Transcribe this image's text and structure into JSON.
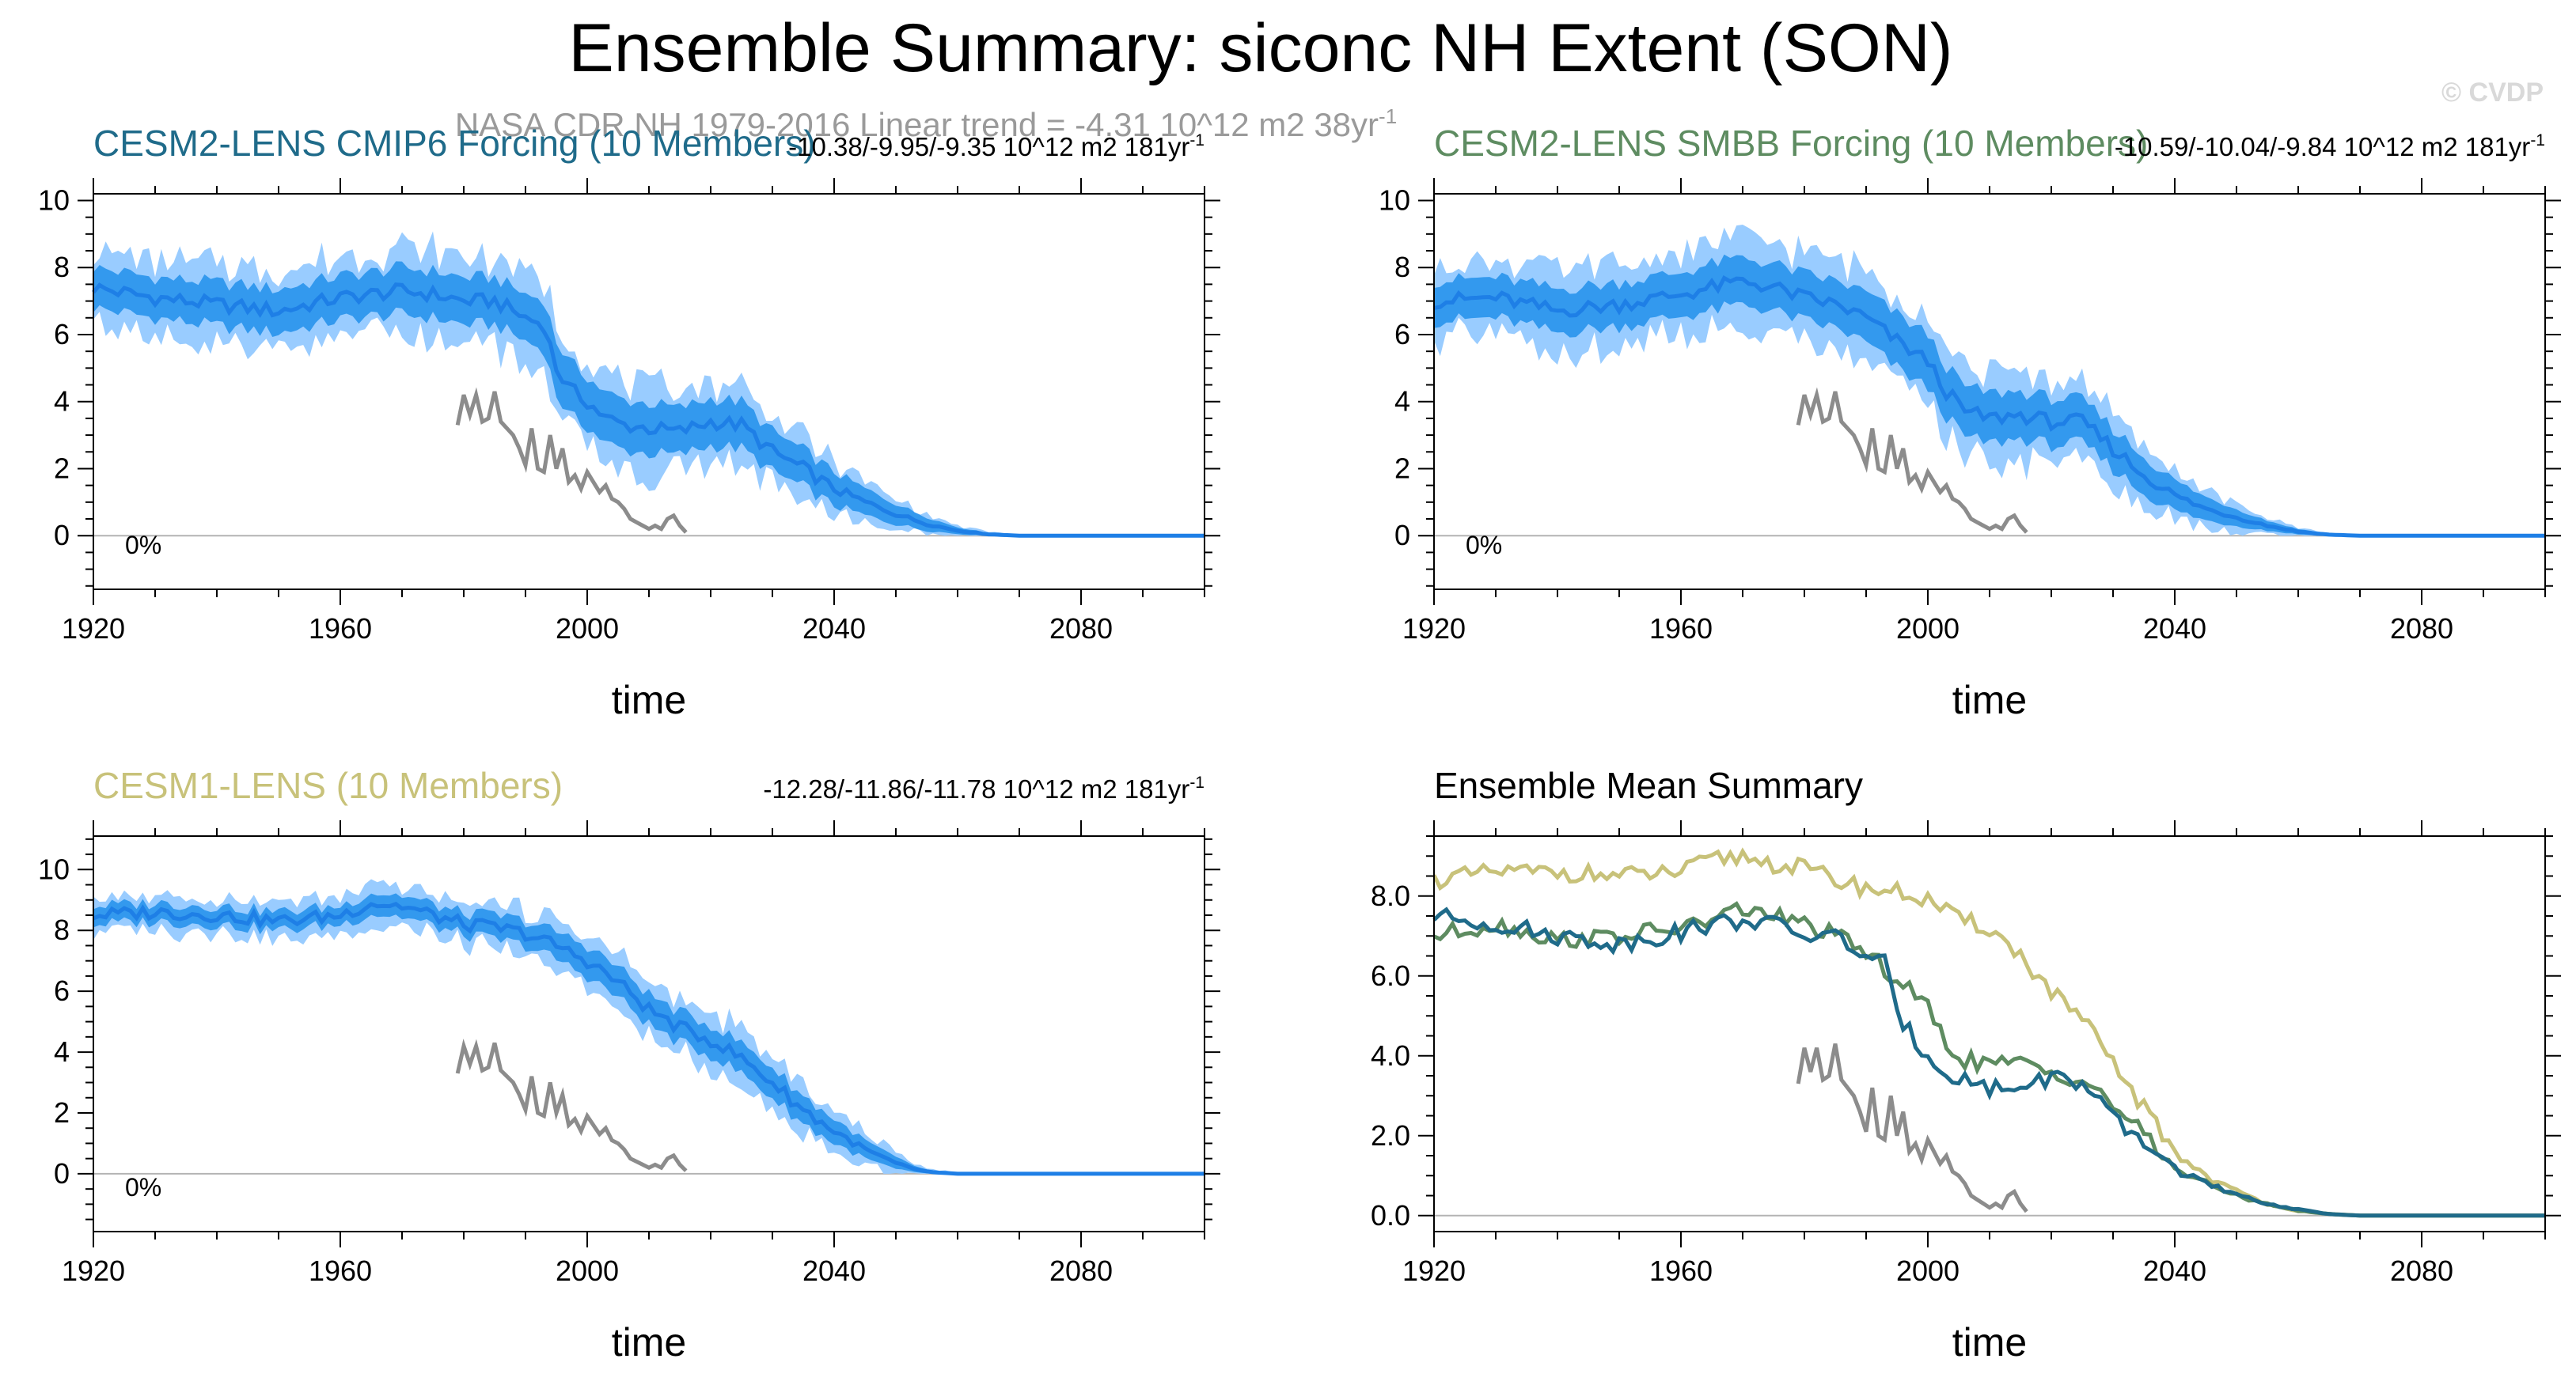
{
  "header": {
    "title": "Ensemble Summary: siconc NH Extent (SON)",
    "credit": "© CVDP",
    "obs_note": "NASA CDR NH 1979-2016  Linear trend = -4.31 10^12 m2 38yr",
    "obs_note_sup": "-1"
  },
  "colors": {
    "band_outer": "#99ccff",
    "band_inner": "#3399ee",
    "ens_mean": "#1e7fe6",
    "obs": "#8c8c8c",
    "cesm2_cmip6": "#1f6b8a",
    "cesm2_smbb": "#5e8c61",
    "cesm1": "#c8c27a"
  },
  "chart_data": [
    {
      "type": "area",
      "title": "CESM2-LENS CMIP6 Forcing (10 Members)",
      "title_color": "#1f6b8a",
      "trend_text": "-10.38/-9.95/-9.35 10^12 m2 181yr",
      "trend_sup": "-1",
      "percent_label": "0%",
      "xlabel": "time",
      "ylabel": "",
      "xlim": [
        1920,
        2100
      ],
      "ylim": [
        -1.6,
        10.2
      ],
      "xticks": [
        1920,
        1960,
        2000,
        2040,
        2080
      ],
      "xtick_labels": [
        "1920",
        "1960",
        "2000",
        "2040",
        "2080"
      ],
      "yticks": [
        0,
        2,
        4,
        6,
        8,
        10
      ],
      "ytick_labels": [
        "0",
        "2",
        "4",
        "6",
        "8",
        "10"
      ],
      "zero_line": true,
      "series_anchors": {
        "x": [
          1920,
          1930,
          1940,
          1950,
          1960,
          1965,
          1970,
          1975,
          1980,
          1985,
          1990,
          1993,
          1995,
          1997,
          2000,
          2003,
          2006,
          2010,
          2015,
          2020,
          2025,
          2030,
          2035,
          2040,
          2045,
          2050,
          2055,
          2060,
          2065,
          2070,
          2080,
          2100
        ],
        "mean": [
          7.4,
          7.1,
          6.9,
          6.7,
          7.1,
          7.2,
          7.3,
          7.2,
          7.0,
          7.0,
          6.5,
          6.3,
          5.0,
          4.4,
          4.0,
          3.5,
          3.3,
          3.2,
          3.1,
          3.4,
          3.3,
          2.5,
          2.0,
          1.4,
          1.0,
          0.65,
          0.35,
          0.15,
          0.04,
          0.0,
          0.0,
          0.0
        ],
        "inner_half": [
          0.6,
          0.6,
          0.65,
          0.65,
          0.65,
          0.65,
          0.7,
          0.7,
          0.7,
          0.7,
          0.7,
          0.75,
          0.8,
          0.8,
          0.75,
          0.75,
          0.75,
          0.75,
          0.7,
          0.7,
          0.7,
          0.6,
          0.55,
          0.5,
          0.4,
          0.3,
          0.2,
          0.1,
          0.05,
          0.02,
          0.0,
          0.0
        ],
        "outer_half": [
          1.1,
          1.1,
          1.2,
          1.2,
          1.2,
          1.2,
          1.3,
          1.3,
          1.3,
          1.3,
          1.3,
          1.4,
          1.4,
          1.4,
          1.3,
          1.3,
          1.3,
          1.3,
          1.2,
          1.2,
          1.2,
          1.0,
          0.9,
          0.8,
          0.6,
          0.45,
          0.3,
          0.15,
          0.08,
          0.03,
          0.0,
          0.0
        ]
      },
      "obs": {
        "name": "NASA CDR NH",
        "x": [
          1979,
          1980,
          1981,
          1982,
          1983,
          1984,
          1985,
          1986,
          1987,
          1988,
          1989,
          1990,
          1991,
          1992,
          1993,
          1994,
          1995,
          1996,
          1997,
          1998,
          1999,
          2000,
          2001,
          2002,
          2003,
          2004,
          2005,
          2006,
          2007,
          2008,
          2009,
          2010,
          2011,
          2012,
          2013,
          2014,
          2015,
          2016
        ],
        "values": [
          3.3,
          4.2,
          3.6,
          4.2,
          3.4,
          3.5,
          4.3,
          3.4,
          3.2,
          3.0,
          2.6,
          2.1,
          3.2,
          2.0,
          1.9,
          3.0,
          2.0,
          2.6,
          1.6,
          1.8,
          1.4,
          1.9,
          1.6,
          1.3,
          1.5,
          1.1,
          1.0,
          0.8,
          0.5,
          0.4,
          0.3,
          0.2,
          0.3,
          0.2,
          0.5,
          0.6,
          0.3,
          0.1
        ]
      }
    },
    {
      "type": "area",
      "title": "CESM2-LENS SMBB Forcing (10 Members)",
      "title_color": "#5e8c61",
      "trend_text": "-10.59/-10.04/-9.84 10^12 m2 181yr",
      "trend_sup": "-1",
      "percent_label": "0%",
      "xlabel": "time",
      "ylabel": "",
      "xlim": [
        1920,
        2100
      ],
      "ylim": [
        -1.6,
        10.2
      ],
      "xticks": [
        1920,
        1960,
        2000,
        2040,
        2080
      ],
      "xtick_labels": [
        "1920",
        "1960",
        "2000",
        "2040",
        "2080"
      ],
      "yticks": [
        0,
        2,
        4,
        6,
        8,
        10
      ],
      "ytick_labels": [
        "0",
        "2",
        "4",
        "6",
        "8",
        "10"
      ],
      "zero_line": true,
      "series_anchors": {
        "x": [
          1920,
          1930,
          1940,
          1950,
          1960,
          1965,
          1970,
          1975,
          1980,
          1985,
          1990,
          1995,
          2000,
          2003,
          2006,
          2010,
          2015,
          2020,
          2025,
          2030,
          2035,
          2040,
          2045,
          2050,
          2055,
          2060,
          2065,
          2070,
          2080,
          2100
        ],
        "mean": [
          7.0,
          7.1,
          6.7,
          6.9,
          7.2,
          7.4,
          7.6,
          7.4,
          7.1,
          6.9,
          6.5,
          5.8,
          5.2,
          4.3,
          3.7,
          3.5,
          3.6,
          3.4,
          3.4,
          2.6,
          1.8,
          1.2,
          0.8,
          0.55,
          0.3,
          0.12,
          0.03,
          0.0,
          0.0,
          0.0
        ],
        "inner_half": [
          0.6,
          0.6,
          0.65,
          0.65,
          0.65,
          0.7,
          0.7,
          0.7,
          0.7,
          0.7,
          0.75,
          0.8,
          0.8,
          0.75,
          0.75,
          0.75,
          0.7,
          0.7,
          0.65,
          0.6,
          0.55,
          0.45,
          0.35,
          0.25,
          0.15,
          0.08,
          0.04,
          0.02,
          0.0,
          0.0
        ],
        "outer_half": [
          1.1,
          1.1,
          1.2,
          1.2,
          1.2,
          1.3,
          1.3,
          1.3,
          1.3,
          1.3,
          1.4,
          1.4,
          1.4,
          1.4,
          1.3,
          1.3,
          1.3,
          1.2,
          1.2,
          1.0,
          0.9,
          0.75,
          0.55,
          0.4,
          0.25,
          0.12,
          0.06,
          0.03,
          0.0,
          0.0
        ]
      },
      "obs": {
        "name": "NASA CDR NH",
        "x": [
          1979,
          1980,
          1981,
          1982,
          1983,
          1984,
          1985,
          1986,
          1987,
          1988,
          1989,
          1990,
          1991,
          1992,
          1993,
          1994,
          1995,
          1996,
          1997,
          1998,
          1999,
          2000,
          2001,
          2002,
          2003,
          2004,
          2005,
          2006,
          2007,
          2008,
          2009,
          2010,
          2011,
          2012,
          2013,
          2014,
          2015,
          2016
        ],
        "values": [
          3.3,
          4.2,
          3.6,
          4.2,
          3.4,
          3.5,
          4.3,
          3.4,
          3.2,
          3.0,
          2.6,
          2.1,
          3.2,
          2.0,
          1.9,
          3.0,
          2.0,
          2.6,
          1.6,
          1.8,
          1.4,
          1.9,
          1.6,
          1.3,
          1.5,
          1.1,
          1.0,
          0.8,
          0.5,
          0.4,
          0.3,
          0.2,
          0.3,
          0.2,
          0.5,
          0.6,
          0.3,
          0.1
        ]
      }
    },
    {
      "type": "area",
      "title": "CESM1-LENS (10 Members)",
      "title_color": "#c8c27a",
      "trend_text": "-12.28/-11.86/-11.78 10^12 m2 181yr",
      "trend_sup": "-1",
      "percent_label": "0%",
      "xlabel": "time",
      "ylabel": "",
      "xlim": [
        1920,
        2100
      ],
      "ylim": [
        -1.9,
        11.1
      ],
      "xticks": [
        1920,
        1960,
        2000,
        2040,
        2080
      ],
      "xtick_labels": [
        "1920",
        "1960",
        "2000",
        "2040",
        "2080"
      ],
      "yticks": [
        0,
        2,
        4,
        6,
        8,
        10
      ],
      "ytick_labels": [
        "0",
        "2",
        "4",
        "6",
        "8",
        "10"
      ],
      "zero_line": true,
      "series_anchors": {
        "x": [
          1920,
          1930,
          1940,
          1950,
          1960,
          1965,
          1970,
          1975,
          1980,
          1985,
          1990,
          1995,
          2000,
          2005,
          2010,
          2015,
          2020,
          2025,
          2030,
          2035,
          2040,
          2045,
          2050,
          2053,
          2056,
          2060,
          2065,
          2070,
          2080,
          2100
        ],
        "mean": [
          8.5,
          8.6,
          8.5,
          8.3,
          8.5,
          8.9,
          8.8,
          8.5,
          8.2,
          8.1,
          7.9,
          7.5,
          7.0,
          6.3,
          5.4,
          4.8,
          4.4,
          3.8,
          3.0,
          2.1,
          1.4,
          0.8,
          0.35,
          0.15,
          0.05,
          0.0,
          0.0,
          0.0,
          0.0,
          0.0
        ],
        "inner_half": [
          0.3,
          0.3,
          0.3,
          0.3,
          0.3,
          0.35,
          0.35,
          0.35,
          0.35,
          0.4,
          0.4,
          0.45,
          0.5,
          0.5,
          0.5,
          0.5,
          0.5,
          0.5,
          0.5,
          0.45,
          0.4,
          0.3,
          0.2,
          0.1,
          0.05,
          0.02,
          0.0,
          0.0,
          0.0,
          0.0
        ],
        "outer_half": [
          0.55,
          0.55,
          0.6,
          0.6,
          0.6,
          0.65,
          0.65,
          0.65,
          0.65,
          0.7,
          0.75,
          0.8,
          0.85,
          0.9,
          0.9,
          0.9,
          0.9,
          0.9,
          0.85,
          0.8,
          0.7,
          0.55,
          0.35,
          0.2,
          0.1,
          0.04,
          0.0,
          0.0,
          0.0,
          0.0
        ]
      },
      "obs": {
        "name": "NASA CDR NH",
        "x": [
          1979,
          1980,
          1981,
          1982,
          1983,
          1984,
          1985,
          1986,
          1987,
          1988,
          1989,
          1990,
          1991,
          1992,
          1993,
          1994,
          1995,
          1996,
          1997,
          1998,
          1999,
          2000,
          2001,
          2002,
          2003,
          2004,
          2005,
          2006,
          2007,
          2008,
          2009,
          2010,
          2011,
          2012,
          2013,
          2014,
          2015,
          2016
        ],
        "values": [
          3.3,
          4.2,
          3.6,
          4.2,
          3.4,
          3.5,
          4.3,
          3.4,
          3.2,
          3.0,
          2.6,
          2.1,
          3.2,
          2.0,
          1.9,
          3.0,
          2.0,
          2.6,
          1.6,
          1.8,
          1.4,
          1.9,
          1.6,
          1.3,
          1.5,
          1.1,
          1.0,
          0.8,
          0.5,
          0.4,
          0.3,
          0.2,
          0.3,
          0.2,
          0.5,
          0.6,
          0.3,
          0.1
        ]
      }
    },
    {
      "type": "line",
      "title": "Ensemble Mean Summary",
      "title_color": "#000000",
      "xlabel": "time",
      "ylabel": "",
      "xlim": [
        1920,
        2100
      ],
      "ylim": [
        -0.4,
        9.5
      ],
      "xticks": [
        1920,
        1960,
        2000,
        2040,
        2080
      ],
      "xtick_labels": [
        "1920",
        "1960",
        "2000",
        "2040",
        "2080"
      ],
      "yticks": [
        0,
        2,
        4,
        6,
        8
      ],
      "ytick_labels": [
        "0.0",
        "2.0",
        "4.0",
        "6.0",
        "8.0"
      ],
      "zero_line": true,
      "series": [
        {
          "name": "CESM1-LENS",
          "color": "#c8c27a",
          "x": [
            1920,
            1930,
            1940,
            1950,
            1960,
            1965,
            1970,
            1975,
            1980,
            1985,
            1990,
            1995,
            2000,
            2005,
            2010,
            2015,
            2020,
            2025,
            2030,
            2035,
            2040,
            2045,
            2050,
            2055,
            2060,
            2065,
            2070,
            2080,
            2100
          ],
          "values": [
            8.4,
            8.6,
            8.6,
            8.5,
            8.6,
            8.9,
            9.0,
            8.8,
            8.7,
            8.4,
            8.2,
            8.1,
            7.9,
            7.4,
            7.2,
            6.5,
            5.6,
            4.9,
            3.8,
            2.7,
            1.6,
            1.0,
            0.6,
            0.3,
            0.12,
            0.04,
            0.0,
            0.0,
            0.0
          ]
        },
        {
          "name": "CESM2-LENS SMBB Forcing",
          "color": "#5e8c61",
          "x": [
            1920,
            1930,
            1940,
            1950,
            1960,
            1965,
            1970,
            1975,
            1980,
            1985,
            1990,
            1995,
            2000,
            2003,
            2006,
            2010,
            2015,
            2020,
            2025,
            2030,
            2035,
            2040,
            2045,
            2050,
            2055,
            2060,
            2065,
            2070,
            2080,
            2100
          ],
          "values": [
            7.0,
            7.3,
            6.9,
            7.0,
            7.2,
            7.4,
            7.7,
            7.5,
            7.3,
            7.0,
            6.6,
            5.9,
            5.2,
            4.3,
            3.9,
            3.8,
            3.8,
            3.6,
            3.4,
            2.8,
            2.0,
            1.2,
            0.8,
            0.5,
            0.3,
            0.12,
            0.04,
            0.0,
            0.0,
            0.0
          ]
        },
        {
          "name": "CESM2-LENS CMIP6 Forcing",
          "color": "#1f6b8a",
          "x": [
            1920,
            1930,
            1940,
            1950,
            1960,
            1965,
            1970,
            1975,
            1980,
            1985,
            1990,
            1993,
            1995,
            1997,
            2000,
            2003,
            2006,
            2010,
            2015,
            2020,
            2025,
            2030,
            2035,
            2040,
            2045,
            2050,
            2055,
            2060,
            2065,
            2070,
            2080,
            2100
          ],
          "values": [
            7.5,
            7.3,
            7.0,
            6.8,
            7.1,
            7.3,
            7.4,
            7.3,
            7.0,
            7.0,
            6.5,
            6.3,
            5.0,
            4.6,
            4.0,
            3.6,
            3.4,
            3.2,
            3.2,
            3.5,
            3.3,
            2.4,
            1.8,
            1.2,
            0.8,
            0.5,
            0.3,
            0.15,
            0.04,
            0.0,
            0.0,
            0.0
          ]
        }
      ],
      "obs": {
        "name": "NASA CDR NH",
        "x": [
          1979,
          1980,
          1981,
          1982,
          1983,
          1984,
          1985,
          1986,
          1987,
          1988,
          1989,
          1990,
          1991,
          1992,
          1993,
          1994,
          1995,
          1996,
          1997,
          1998,
          1999,
          2000,
          2001,
          2002,
          2003,
          2004,
          2005,
          2006,
          2007,
          2008,
          2009,
          2010,
          2011,
          2012,
          2013,
          2014,
          2015,
          2016
        ],
        "values": [
          3.3,
          4.2,
          3.6,
          4.2,
          3.4,
          3.5,
          4.3,
          3.4,
          3.2,
          3.0,
          2.6,
          2.1,
          3.2,
          2.0,
          1.9,
          3.0,
          2.0,
          2.6,
          1.6,
          1.8,
          1.4,
          1.9,
          1.6,
          1.3,
          1.5,
          1.1,
          1.0,
          0.8,
          0.5,
          0.4,
          0.3,
          0.2,
          0.3,
          0.2,
          0.5,
          0.6,
          0.3,
          0.1
        ]
      }
    }
  ]
}
